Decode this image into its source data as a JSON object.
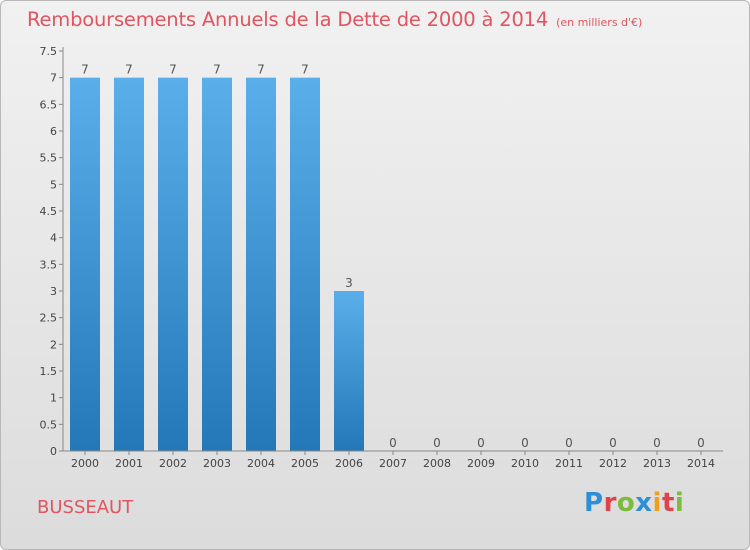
{
  "header": {
    "title": "Remboursements Annuels de la Dette de 2000 à 2014",
    "subtitle": "(en milliers d'€)"
  },
  "footer": {
    "commune": "BUSSEAUT",
    "brand_letters": [
      "P",
      "r",
      "o",
      "x",
      "i",
      "t",
      "i"
    ],
    "brand_colors": [
      "#2e8fd6",
      "#e0434b",
      "#7cbc3c",
      "#2e8fd6",
      "#f0a020",
      "#e0434b",
      "#7cbc3c"
    ]
  },
  "chart_data": {
    "type": "bar",
    "categories": [
      "2000",
      "2001",
      "2002",
      "2003",
      "2004",
      "2005",
      "2006",
      "2007",
      "2008",
      "2009",
      "2010",
      "2011",
      "2012",
      "2013",
      "2014"
    ],
    "values": [
      7,
      7,
      7,
      7,
      7,
      7,
      3,
      0,
      0,
      0,
      0,
      0,
      0,
      0,
      0
    ],
    "data_labels": [
      "7",
      "7",
      "7",
      "7",
      "7",
      "7",
      "3",
      "0",
      "0",
      "0",
      "0",
      "0",
      "0",
      "0",
      "0"
    ],
    "title": "Remboursements Annuels de la Dette de 2000 à 2014",
    "subtitle": "(en milliers d'€)",
    "xlabel": "",
    "ylabel": "",
    "ylim": [
      0,
      7.5
    ],
    "yticks": [
      "0",
      "0.5",
      "1",
      "1.5",
      "2",
      "2.5",
      "3",
      "3.5",
      "4",
      "4.5",
      "5",
      "5.5",
      "6",
      "6.5",
      "7",
      "7.5"
    ],
    "grid": false,
    "bar_color_top": "#5aaee9",
    "bar_color_bottom": "#2478b8"
  }
}
